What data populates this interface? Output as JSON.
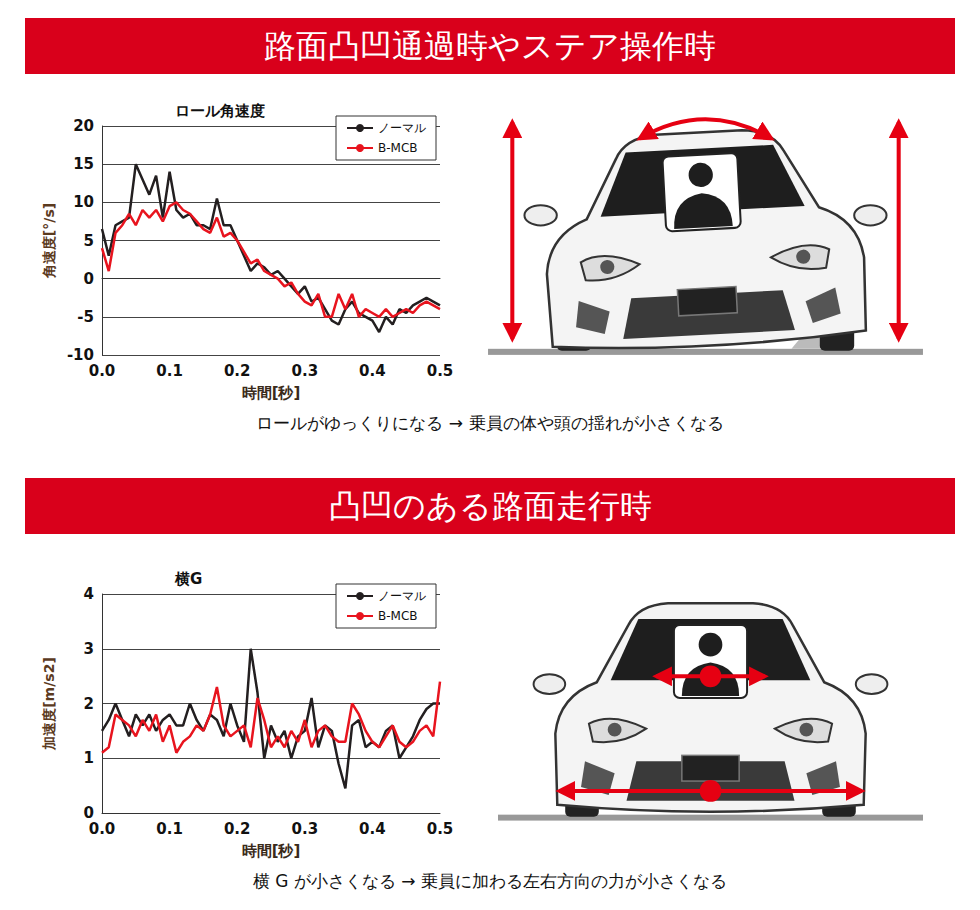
{
  "sections": [
    {
      "heading": "路面凸凹通過時やステア操作時",
      "caption": "ロールがゆっくりになる → 乗員の体や頭の揺れが小さくなる"
    },
    {
      "heading": "凸凹のある路面走行時",
      "caption": "横 G が小さくなる → 乗員に加わる左右方向の力が小さくなる"
    }
  ],
  "chart_data": [
    {
      "type": "line",
      "title": "ロール角速度",
      "x_label": "時間[秒]",
      "y_label": "角速度[°/s]",
      "x": [
        0,
        0.01,
        0.02,
        0.03,
        0.04,
        0.05,
        0.06,
        0.07,
        0.08,
        0.09,
        0.1,
        0.11,
        0.12,
        0.13,
        0.14,
        0.15,
        0.16,
        0.17,
        0.18,
        0.19,
        0.2,
        0.21,
        0.22,
        0.23,
        0.24,
        0.25,
        0.26,
        0.27,
        0.28,
        0.29,
        0.3,
        0.31,
        0.32,
        0.33,
        0.34,
        0.35,
        0.36,
        0.37,
        0.38,
        0.39,
        0.4,
        0.41,
        0.42,
        0.43,
        0.44,
        0.45,
        0.46,
        0.47,
        0.48,
        0.49,
        0.5
      ],
      "series": [
        {
          "name": "ノーマル",
          "color": "#231f20",
          "values": [
            6.5,
            3,
            7,
            7.5,
            8,
            15,
            13,
            11,
            13.5,
            8,
            14,
            9,
            8,
            8.5,
            7,
            7,
            6.5,
            10.5,
            7,
            7,
            5,
            3,
            1,
            2,
            1.5,
            0.5,
            1,
            0,
            -1,
            -2,
            -1,
            -3,
            -2.5,
            -4,
            -5.5,
            -6,
            -4,
            -3,
            -4.5,
            -5,
            -5.5,
            -7,
            -5,
            -6,
            -4,
            -4.5,
            -3.5,
            -3,
            -2.5,
            -3,
            -3.5
          ]
        },
        {
          "name": "B-MCB",
          "color": "#e8141e",
          "values": [
            4,
            1,
            6,
            7,
            8.5,
            7,
            9,
            8,
            9,
            7.5,
            9.5,
            10,
            9,
            8.5,
            7.5,
            6.5,
            6,
            8,
            5.5,
            6,
            5,
            3.5,
            2,
            2.5,
            1,
            0.5,
            0,
            -1,
            -0.5,
            -2,
            -3,
            -3.5,
            -2,
            -5,
            -5,
            -2,
            -4,
            -2,
            -5,
            -4,
            -4.5,
            -5,
            -4,
            -5,
            -4.5,
            -4,
            -4.5,
            -3.5,
            -3,
            -3.5,
            -4
          ]
        }
      ],
      "xlim": [
        0,
        0.5
      ],
      "xticks": [
        {
          "value": 0,
          "label": "0.0"
        },
        0.1,
        0.2,
        0.3,
        0.4,
        0.5
      ],
      "ylim": [
        -10,
        20
      ],
      "yticks": [
        -10,
        -5,
        0,
        5,
        10,
        15,
        20
      ],
      "grid": true,
      "legend": "upper right"
    },
    {
      "type": "line",
      "title": "横G",
      "x_label": "時間[秒]",
      "y_label": "加速度[m/s2]",
      "x": [
        0,
        0.01,
        0.02,
        0.03,
        0.04,
        0.05,
        0.06,
        0.07,
        0.08,
        0.09,
        0.1,
        0.11,
        0.12,
        0.13,
        0.14,
        0.15,
        0.16,
        0.17,
        0.18,
        0.19,
        0.2,
        0.21,
        0.22,
        0.23,
        0.24,
        0.25,
        0.26,
        0.27,
        0.28,
        0.29,
        0.3,
        0.31,
        0.32,
        0.33,
        0.34,
        0.35,
        0.36,
        0.37,
        0.38,
        0.39,
        0.4,
        0.41,
        0.42,
        0.43,
        0.44,
        0.45,
        0.46,
        0.47,
        0.48,
        0.49,
        0.5
      ],
      "series": [
        {
          "name": "ノーマル",
          "color": "#231f20",
          "values": [
            1.5,
            1.7,
            2.0,
            1.7,
            1.4,
            1.8,
            1.6,
            1.8,
            1.5,
            1.7,
            1.8,
            1.6,
            1.6,
            2.0,
            1.7,
            1.5,
            1.8,
            1.7,
            1.4,
            2.0,
            1.6,
            1.3,
            3.0,
            2.2,
            1.0,
            1.6,
            1.3,
            1.5,
            1.0,
            1.4,
            1.5,
            2.1,
            1.2,
            1.6,
            1.5,
            0.9,
            0.45,
            1.6,
            1.7,
            1.2,
            1.3,
            1.2,
            1.5,
            1.6,
            1.0,
            1.2,
            1.4,
            1.7,
            1.9,
            2.0,
            2.0
          ]
        },
        {
          "name": "B-MCB",
          "color": "#e8141e",
          "values": [
            1.1,
            1.2,
            1.8,
            1.7,
            1.6,
            1.4,
            1.7,
            1.5,
            1.8,
            1.3,
            1.6,
            1.1,
            1.3,
            1.4,
            1.6,
            1.5,
            1.8,
            2.3,
            1.6,
            1.4,
            1.5,
            1.6,
            1.2,
            2.1,
            1.7,
            1.2,
            1.4,
            1.2,
            1.5,
            1.3,
            1.7,
            1.2,
            1.5,
            1.6,
            1.4,
            1.3,
            1.3,
            2.0,
            1.8,
            1.5,
            1.3,
            1.2,
            1.4,
            1.6,
            1.3,
            1.2,
            1.3,
            1.5,
            1.6,
            1.4,
            2.4
          ]
        }
      ],
      "xlim": [
        0,
        0.5
      ],
      "xticks": [
        {
          "value": 0,
          "label": "0.0"
        },
        0.1,
        0.2,
        0.3,
        0.4,
        0.5
      ],
      "ylim": [
        0,
        4
      ],
      "yticks": [
        0,
        1,
        2,
        3,
        4
      ],
      "grid": true,
      "legend": "upper right"
    }
  ]
}
